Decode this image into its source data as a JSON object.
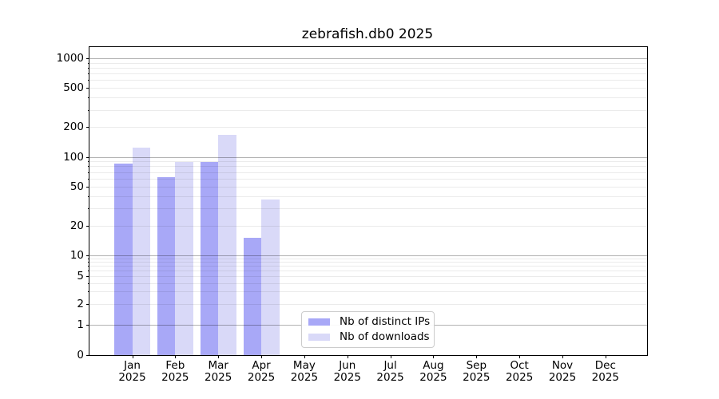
{
  "title": "zebrafish.db0 2025",
  "colors": {
    "background": "#ffffff",
    "ips_bar": "#a8a8f7",
    "downloads_bar": "#d9d9f8",
    "grid_major": "rgba(0,0,0,0.30)",
    "grid_minor": "rgba(0,0,0,0.08)",
    "spine": "#000000",
    "legend_border": "#cccccc"
  },
  "legend": {
    "items": [
      {
        "label": "Nb of distinct IPs",
        "color": "#a8a8f7"
      },
      {
        "label": "Nb of downloads",
        "color": "#d9d9f8"
      }
    ]
  },
  "y_axis": {
    "ticks": [
      {
        "label": "1000",
        "value": 1000
      },
      {
        "label": "500",
        "value": 500
      },
      {
        "label": "200",
        "value": 200
      },
      {
        "label": "100",
        "value": 100
      },
      {
        "label": "50",
        "value": 50
      },
      {
        "label": "20",
        "value": 20
      },
      {
        "label": "10",
        "value": 10
      },
      {
        "label": "5",
        "value": 5
      },
      {
        "label": "2",
        "value": 2
      },
      {
        "label": "1",
        "value": 1
      },
      {
        "label": "0",
        "value": 0
      }
    ]
  },
  "x_axis": {
    "months": [
      {
        "month": "Jan",
        "year": "2025"
      },
      {
        "month": "Feb",
        "year": "2025"
      },
      {
        "month": "Mar",
        "year": "2025"
      },
      {
        "month": "Apr",
        "year": "2025"
      },
      {
        "month": "May",
        "year": "2025"
      },
      {
        "month": "Jun",
        "year": "2025"
      },
      {
        "month": "Jul",
        "year": "2025"
      },
      {
        "month": "Aug",
        "year": "2025"
      },
      {
        "month": "Sep",
        "year": "2025"
      },
      {
        "month": "Oct",
        "year": "2025"
      },
      {
        "month": "Nov",
        "year": "2025"
      },
      {
        "month": "Dec",
        "year": "2025"
      }
    ]
  },
  "chart_data": {
    "type": "bar",
    "title": "zebrafish.db0 2025",
    "categories": [
      "Jan 2025",
      "Feb 2025",
      "Mar 2025",
      "Apr 2025",
      "May 2025",
      "Jun 2025",
      "Jul 2025",
      "Aug 2025",
      "Sep 2025",
      "Oct 2025",
      "Nov 2025",
      "Dec 2025"
    ],
    "series": [
      {
        "name": "Nb of distinct IPs",
        "key": "ips",
        "color": "#a8a8f7",
        "values": [
          85,
          62,
          88,
          15,
          0,
          0,
          0,
          0,
          0,
          0,
          0,
          0
        ]
      },
      {
        "name": "Nb of downloads",
        "key": "downloads",
        "color": "#d9d9f8",
        "values": [
          123,
          89,
          168,
          37,
          0,
          0,
          0,
          0,
          0,
          0,
          0,
          0
        ]
      }
    ],
    "xlabel": "",
    "ylabel": "",
    "y_scale": "symlog",
    "ylim": [
      0,
      1300
    ],
    "y_ticks": [
      0,
      1,
      2,
      5,
      10,
      20,
      50,
      100,
      200,
      500,
      1000
    ],
    "grid": true,
    "legend_position": "inside lower center-left"
  }
}
